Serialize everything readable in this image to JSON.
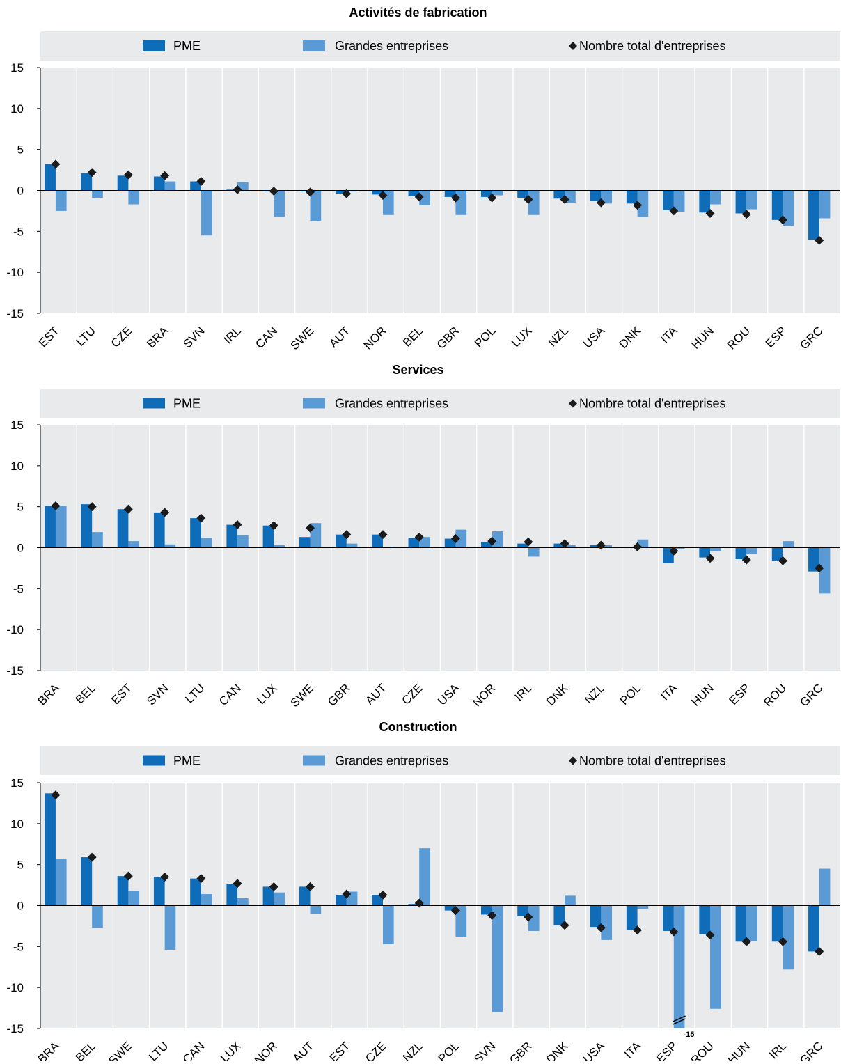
{
  "colors": {
    "sme": "#0f6cb8",
    "large": "#5b9bd5",
    "total": "#1a1a1a",
    "bg": "#e9eaeb",
    "grid": "#ffffff",
    "axis": "#000000"
  },
  "legend": {
    "sme": "PME",
    "large": "Grandes entreprises",
    "total": "Nombre total d'entreprises"
  },
  "chart_data": [
    {
      "type": "bar",
      "title": "Activités de fabrication",
      "ylim": [
        -15,
        15
      ],
      "yticks": [
        15,
        10,
        5,
        0,
        -5,
        -10,
        -15
      ],
      "categories": [
        "EST",
        "LTU",
        "CZE",
        "BRA",
        "SVN",
        "IRL",
        "CAN",
        "SWE",
        "AUT",
        "NOR",
        "BEL",
        "GBR",
        "POL",
        "LUX",
        "NZL",
        "USA",
        "DNK",
        "ITA",
        "HUN",
        "ROU",
        "ESP",
        "GRC"
      ],
      "series": [
        {
          "name": "PME",
          "kind": "bar",
          "values": [
            3.2,
            2.1,
            1.8,
            1.7,
            1.1,
            0.1,
            -0.1,
            -0.1,
            -0.4,
            -0.5,
            -0.7,
            -0.8,
            -0.8,
            -0.9,
            -1.0,
            -1.3,
            -1.6,
            -2.4,
            -2.7,
            -2.8,
            -3.6,
            -6.0
          ]
        },
        {
          "name": "Grandes entreprises",
          "kind": "bar",
          "values": [
            -2.5,
            -0.9,
            -1.7,
            1.1,
            -5.5,
            1.0,
            -3.2,
            -3.7,
            -0.1,
            -3.0,
            -1.8,
            -3.0,
            -0.6,
            -3.0,
            -1.5,
            -1.6,
            -3.2,
            -2.6,
            -1.7,
            -2.3,
            -4.3,
            -3.4
          ]
        },
        {
          "name": "Nombre total d'entreprises",
          "kind": "marker",
          "values": [
            3.2,
            2.2,
            1.9,
            1.8,
            1.1,
            0.1,
            -0.1,
            -0.2,
            -0.4,
            -0.6,
            -0.8,
            -0.9,
            -0.9,
            -1.1,
            -1.1,
            -1.5,
            -1.8,
            -2.5,
            -2.8,
            -2.9,
            -3.6,
            -6.1
          ]
        }
      ]
    },
    {
      "type": "bar",
      "title": "Services",
      "ylim": [
        -15,
        15
      ],
      "yticks": [
        15,
        10,
        5,
        0,
        -5,
        -10,
        -15
      ],
      "categories": [
        "BRA",
        "BEL",
        "EST",
        "SVN",
        "LTU",
        "CAN",
        "LUX",
        "SWE",
        "GBR",
        "AUT",
        "CZE",
        "USA",
        "NOR",
        "IRL",
        "DNK",
        "NZL",
        "POL",
        "ITA",
        "HUN",
        "ESP",
        "ROU",
        "GRC"
      ],
      "series": [
        {
          "name": "PME",
          "kind": "bar",
          "values": [
            5.1,
            5.3,
            4.7,
            4.3,
            3.6,
            2.8,
            2.7,
            1.3,
            1.6,
            1.6,
            1.2,
            1.1,
            0.7,
            0.5,
            0.5,
            0.3,
            0.0,
            -1.9,
            -1.2,
            -1.4,
            -1.6,
            -2.9
          ]
        },
        {
          "name": "Grandes entreprises",
          "kind": "bar",
          "values": [
            5.1,
            1.9,
            0.8,
            0.4,
            1.2,
            1.5,
            0.3,
            3.0,
            0.5,
            0.1,
            1.3,
            2.2,
            2.0,
            -1.1,
            0.3,
            0.3,
            1.0,
            -0.2,
            -0.4,
            -0.8,
            0.8,
            -5.6
          ]
        },
        {
          "name": "Nombre total d'entreprises",
          "kind": "marker",
          "values": [
            5.1,
            5.0,
            4.7,
            4.3,
            3.6,
            2.8,
            2.7,
            2.4,
            1.6,
            1.6,
            1.3,
            1.1,
            0.8,
            0.7,
            0.5,
            0.3,
            0.1,
            -0.4,
            -1.3,
            -1.5,
            -1.6,
            -2.5
          ]
        }
      ]
    },
    {
      "type": "bar",
      "title": "Construction",
      "ylim": [
        -15,
        15
      ],
      "yticks": [
        15,
        10,
        5,
        0,
        -5,
        -10,
        -15
      ],
      "categories": [
        "BRA",
        "BEL",
        "SWE",
        "LTU",
        "CAN",
        "LUX",
        "NOR",
        "AUT",
        "EST",
        "CZE",
        "NZL",
        "POL",
        "SVN",
        "GBR",
        "DNK",
        "USA",
        "ITA",
        "ESP",
        "ROU",
        "HUN",
        "IRL",
        "GRC"
      ],
      "truncation_label": "-15",
      "series": [
        {
          "name": "PME",
          "kind": "bar",
          "values": [
            13.7,
            5.9,
            3.6,
            3.5,
            3.3,
            2.6,
            2.3,
            2.3,
            1.3,
            1.3,
            0.2,
            -0.6,
            -1.1,
            -1.3,
            -2.4,
            -2.6,
            -3.0,
            -3.1,
            -3.5,
            -4.4,
            -4.4,
            -5.6
          ]
        },
        {
          "name": "Grandes entreprises",
          "kind": "bar",
          "values": [
            5.7,
            -2.7,
            1.8,
            -5.4,
            1.4,
            0.9,
            1.6,
            -1.0,
            1.7,
            -4.7,
            7.0,
            -3.8,
            -13.0,
            -3.1,
            1.2,
            -4.2,
            -0.4,
            -15.0,
            -12.6,
            -4.3,
            -7.8,
            4.5
          ]
        },
        {
          "name": "Nombre total d'entreprises",
          "kind": "marker",
          "values": [
            13.5,
            5.9,
            3.6,
            3.5,
            3.3,
            2.7,
            2.3,
            2.3,
            1.4,
            1.3,
            0.3,
            -0.6,
            -1.2,
            -1.4,
            -2.4,
            -2.7,
            -3.0,
            -3.2,
            -3.6,
            -4.4,
            -4.4,
            -5.6
          ]
        }
      ]
    }
  ]
}
